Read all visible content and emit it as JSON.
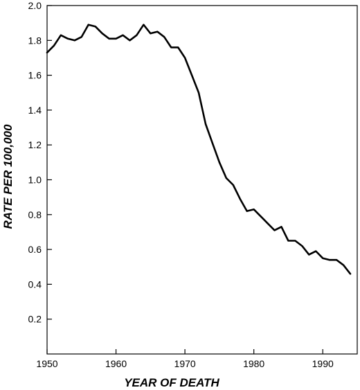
{
  "chart_data": {
    "type": "line",
    "title": "",
    "xlabel": "YEAR OF DEATH",
    "ylabel": "RATE  PER 100,000",
    "xlim": [
      1950,
      1995
    ],
    "ylim": [
      0,
      2.0
    ],
    "x_ticks": [
      1950,
      1960,
      1970,
      1980,
      1990
    ],
    "y_ticks": [
      0.2,
      0.4,
      0.6,
      0.8,
      1.0,
      1.2,
      1.4,
      1.6,
      1.8,
      2.0
    ],
    "x_tick_labels": [
      "1950",
      "1960",
      "1970",
      "1980",
      "1990"
    ],
    "y_tick_labels": [
      "0.2",
      "0.4",
      "0.6",
      "0.8",
      "1.0",
      "1.2",
      "1.4",
      "1.6",
      "1.8",
      "2.0"
    ],
    "grid": false,
    "line_color": "#000000",
    "series": [
      {
        "x": [
          1950,
          1951,
          1952,
          1953,
          1954,
          1955,
          1956,
          1957,
          1958,
          1959,
          1960,
          1961,
          1962,
          1963,
          1964,
          1965,
          1966,
          1967,
          1968,
          1969,
          1970,
          1971,
          1972,
          1973,
          1974,
          1975,
          1976,
          1977,
          1978,
          1979,
          1980,
          1981,
          1982,
          1983,
          1984,
          1985,
          1986,
          1987,
          1988,
          1989,
          1990,
          1991,
          1992,
          1993,
          1994
        ],
        "values": [
          1.73,
          1.77,
          1.83,
          1.81,
          1.8,
          1.82,
          1.89,
          1.88,
          1.84,
          1.81,
          1.81,
          1.83,
          1.8,
          1.83,
          1.89,
          1.84,
          1.85,
          1.82,
          1.76,
          1.76,
          1.7,
          1.6,
          1.5,
          1.32,
          1.21,
          1.1,
          1.01,
          0.97,
          0.89,
          0.82,
          0.83,
          0.79,
          0.75,
          0.71,
          0.73,
          0.65,
          0.65,
          0.62,
          0.57,
          0.59,
          0.55,
          0.54,
          0.54,
          0.51,
          0.46
        ]
      }
    ]
  }
}
